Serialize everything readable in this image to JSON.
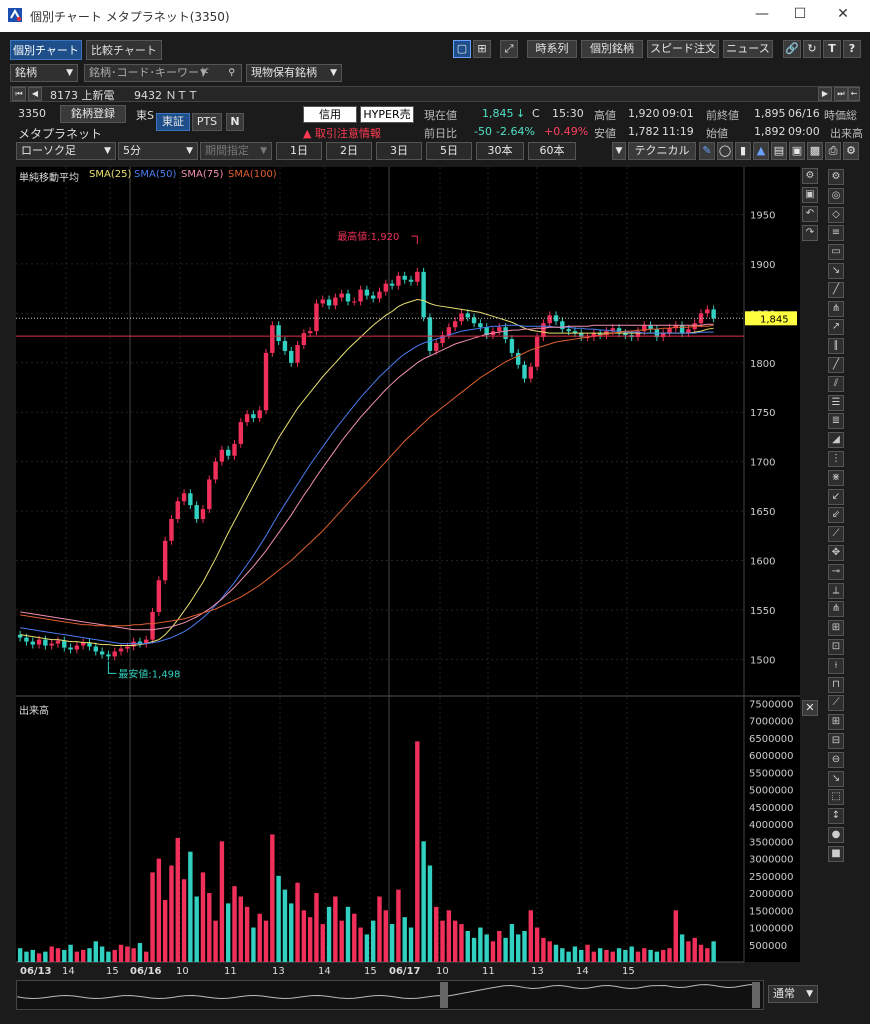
{
  "window": {
    "title": "個別チャート メタプラネット(3350)"
  },
  "tabs": [
    {
      "label": "個別チャート"
    },
    {
      "label": "比較チャート"
    }
  ],
  "topbar": {
    "time_series": "時系列",
    "individual": "個別銘柄",
    "speed_order": "スピード注文",
    "news": "ニュース"
  },
  "search": {
    "type_label": "銘柄",
    "placeholder": "銘柄･コード･キーワード",
    "holdings": "現物保有銘柄"
  },
  "history": {
    "item1": "8173 上新電",
    "item2": "9432 ＮＴＴ"
  },
  "stock": {
    "code": "3350",
    "name": "メタプラネット",
    "register": "銘柄登録",
    "market_short": "東S",
    "exchange": "東証",
    "pts": "PTS",
    "credit": "信用",
    "hyper": "HYPER売",
    "warning": "取引注意情報",
    "current_label": "現在値",
    "current": "1,845",
    "current_arrow": "↓",
    "current_flag": "C",
    "current_time": "15:30",
    "high_label": "高値",
    "high": "1,920",
    "high_time": "09:01",
    "prev_close_label": "前終値",
    "prev_close": "1,895",
    "prev_close_date": "06/16",
    "mid_label": "時価総",
    "change_label": "前日比",
    "change": "-50",
    "change_pct": "-2.64%",
    "change_pts": "+0.49%",
    "low_label": "安値",
    "low": "1,782",
    "low_time": "11:19",
    "open_label": "始値",
    "open": "1,892",
    "open_time": "09:00",
    "late_label": "出来高"
  },
  "chart_controls": {
    "chart_type": "ローソク足",
    "interval": "5分",
    "period": "期間指定",
    "ranges": [
      "1日",
      "2日",
      "3日",
      "5日",
      "30本",
      "60本"
    ],
    "technical": "テクニカル"
  },
  "legend": {
    "title": "単純移動平均",
    "sma25": "SMA(25)",
    "sma50": "SMA(50)",
    "sma75": "SMA(75)",
    "sma100": "SMA(100)",
    "volume_label": "出来高"
  },
  "colors": {
    "up": "#f0305a",
    "down": "#32d0c0",
    "sma25": "#e8e070",
    "sma50": "#4a7cf0",
    "sma75": "#f090b0",
    "sma100": "#e06030",
    "price_line": "#e0304a",
    "current_tag": "#ffff40"
  },
  "annotations": {
    "high": "最高値:1,920",
    "low": "最安値:1,498",
    "current_tag": "1,845"
  },
  "xaxis": {
    "labels": [
      "06/13",
      "14",
      "15",
      "06/16",
      "10",
      "11",
      "13",
      "14",
      "15",
      "06/17",
      "10",
      "11",
      "13",
      "14",
      "15"
    ]
  },
  "bottom": {
    "mode": "通常"
  },
  "chart_data": {
    "type": "candlestick",
    "price_axis": {
      "ticks": [
        1950,
        1900,
        1850,
        1800,
        1750,
        1700,
        1650,
        1600,
        1550,
        1500
      ],
      "range": [
        1465,
        1995
      ]
    },
    "volume_axis": {
      "ticks": [
        7500000,
        7000000,
        6500000,
        6000000,
        5500000,
        5000000,
        4500000,
        4000000,
        3500000,
        3000000,
        2500000,
        2000000,
        1500000,
        1000000,
        500000
      ],
      "range": [
        0,
        7600000
      ]
    },
    "close": [
      1522,
      1518,
      1515,
      1520,
      1514,
      1516,
      1519,
      1512,
      1510,
      1514,
      1517,
      1513,
      1508,
      1505,
      1503,
      1508,
      1511,
      1513,
      1518,
      1516,
      1520,
      1548,
      1580,
      1620,
      1642,
      1660,
      1668,
      1656,
      1642,
      1652,
      1682,
      1700,
      1712,
      1706,
      1718,
      1740,
      1748,
      1744,
      1752,
      1810,
      1838,
      1822,
      1812,
      1800,
      1818,
      1830,
      1832,
      1860,
      1864,
      1858,
      1866,
      1870,
      1862,
      1862,
      1874,
      1868,
      1865,
      1872,
      1880,
      1878,
      1888,
      1884,
      1882,
      1892,
      1846,
      1812,
      1820,
      1828,
      1836,
      1842,
      1850,
      1846,
      1840,
      1836,
      1828,
      1832,
      1836,
      1824,
      1810,
      1798,
      1784,
      1796,
      1826,
      1840,
      1848,
      1842,
      1834,
      1832,
      1830,
      1826,
      1826,
      1830,
      1828,
      1832,
      1835,
      1830,
      1828,
      1826,
      1832,
      1838,
      1834,
      1826,
      1830,
      1835,
      1838,
      1830,
      1834,
      1840,
      1850,
      1854,
      1845
    ],
    "sma25": [
      1525,
      1524,
      1523,
      1522,
      1521,
      1520,
      1520,
      1519,
      1518,
      1518,
      1517,
      1517,
      1516,
      1515,
      1515,
      1514,
      1514,
      1514,
      1514,
      1515,
      1516,
      1518,
      1520,
      1525,
      1532,
      1540,
      1549,
      1558,
      1568,
      1578,
      1590,
      1602,
      1615,
      1628,
      1640,
      1652,
      1664,
      1676,
      1688,
      1700,
      1712,
      1724,
      1734,
      1744,
      1754,
      1762,
      1770,
      1778,
      1786,
      1793,
      1800,
      1807,
      1814,
      1820,
      1826,
      1832,
      1838,
      1843,
      1848,
      1852,
      1857,
      1860,
      1862,
      1864,
      1863,
      1860,
      1858,
      1857,
      1856,
      1855,
      1854,
      1853,
      1852,
      1851,
      1849,
      1847,
      1845,
      1843,
      1841,
      1838,
      1835,
      1833,
      1832,
      1831,
      1830,
      1830,
      1830,
      1830,
      1830,
      1830,
      1830,
      1830,
      1830,
      1830,
      1830,
      1830,
      1830,
      1830,
      1830,
      1830,
      1830,
      1830,
      1830,
      1830,
      1830,
      1830,
      1830,
      1831,
      1832,
      1834,
      1835
    ],
    "sma50": [
      1532,
      1531,
      1530,
      1529,
      1528,
      1527,
      1526,
      1525,
      1524,
      1523,
      1522,
      1521,
      1520,
      1519,
      1518,
      1517,
      1516,
      1516,
      1516,
      1516,
      1516,
      1517,
      1518,
      1520,
      1522,
      1525,
      1528,
      1532,
      1537,
      1542,
      1548,
      1555,
      1562,
      1570,
      1578,
      1587,
      1596,
      1605,
      1615,
      1625,
      1636,
      1647,
      1657,
      1667,
      1677,
      1687,
      1697,
      1706,
      1715,
      1724,
      1733,
      1741,
      1749,
      1757,
      1765,
      1772,
      1779,
      1786,
      1792,
      1798,
      1804,
      1809,
      1813,
      1817,
      1820,
      1822,
      1824,
      1826,
      1828,
      1830,
      1832,
      1833,
      1834,
      1835,
      1836,
      1837,
      1837,
      1838,
      1838,
      1838,
      1837,
      1837,
      1837,
      1837,
      1837,
      1836,
      1836,
      1836,
      1835,
      1835,
      1834,
      1834,
      1833,
      1833,
      1832,
      1832,
      1831,
      1831,
      1831,
      1830,
      1830,
      1830,
      1830,
      1830,
      1830,
      1830,
      1830,
      1830,
      1831,
      1831,
      1831
    ],
    "sma75": [
      1548,
      1547,
      1546,
      1545,
      1544,
      1543,
      1542,
      1541,
      1540,
      1539,
      1538,
      1537,
      1536,
      1535,
      1534,
      1533,
      1532,
      1531,
      1530,
      1530,
      1530,
      1530,
      1531,
      1532,
      1533,
      1535,
      1537,
      1540,
      1543,
      1547,
      1551,
      1556,
      1561,
      1567,
      1573,
      1580,
      1587,
      1594,
      1602,
      1610,
      1619,
      1628,
      1637,
      1646,
      1656,
      1666,
      1675,
      1685,
      1694,
      1703,
      1712,
      1721,
      1729,
      1737,
      1745,
      1752,
      1759,
      1766,
      1773,
      1779,
      1785,
      1790,
      1795,
      1800,
      1804,
      1807,
      1810,
      1813,
      1816,
      1819,
      1821,
      1823,
      1825,
      1827,
      1829,
      1830,
      1831,
      1832,
      1833,
      1833,
      1834,
      1834,
      1835,
      1835,
      1836,
      1836,
      1836,
      1837,
      1837,
      1837,
      1837,
      1838,
      1838,
      1838,
      1838,
      1838,
      1838,
      1838,
      1838,
      1838,
      1838,
      1838,
      1838,
      1838,
      1838,
      1838,
      1838,
      1838,
      1838,
      1839,
      1839
    ],
    "sma100": [
      1545,
      1544,
      1543,
      1542,
      1541,
      1540,
      1539,
      1538,
      1537,
      1536,
      1535,
      1535,
      1534,
      1534,
      1534,
      1534,
      1534,
      1534,
      1535,
      1535,
      1536,
      1536,
      1537,
      1538,
      1539,
      1540,
      1541,
      1543,
      1545,
      1547,
      1549,
      1551,
      1554,
      1557,
      1560,
      1563,
      1567,
      1571,
      1575,
      1580,
      1585,
      1590,
      1595,
      1600,
      1606,
      1612,
      1618,
      1624,
      1630,
      1637,
      1644,
      1651,
      1658,
      1665,
      1672,
      1679,
      1686,
      1693,
      1700,
      1707,
      1714,
      1721,
      1727,
      1733,
      1739,
      1745,
      1750,
      1755,
      1760,
      1765,
      1770,
      1775,
      1780,
      1785,
      1789,
      1793,
      1797,
      1801,
      1804,
      1807,
      1810,
      1813,
      1815,
      1817,
      1819,
      1821,
      1822,
      1823,
      1824,
      1825,
      1826,
      1827,
      1828,
      1829,
      1830,
      1831,
      1832,
      1832,
      1833,
      1833,
      1834,
      1834,
      1835,
      1835,
      1836,
      1836,
      1836,
      1837,
      1837,
      1837,
      1838
    ],
    "volume": [
      400000,
      300000,
      350000,
      250000,
      300000,
      450000,
      400000,
      350000,
      500000,
      300000,
      350000,
      400000,
      600000,
      450000,
      300000,
      350000,
      500000,
      450000,
      400000,
      550000,
      300000,
      2600000,
      3000000,
      1800000,
      2800000,
      3600000,
      2400000,
      3200000,
      1900000,
      2600000,
      2000000,
      1200000,
      3500000,
      1700000,
      2200000,
      1900000,
      1600000,
      1000000,
      1400000,
      1200000,
      3700000,
      2500000,
      2100000,
      1700000,
      2300000,
      1500000,
      1300000,
      2000000,
      1100000,
      1600000,
      1900000,
      1200000,
      1600000,
      1400000,
      1000000,
      800000,
      1200000,
      1900000,
      1500000,
      1100000,
      2100000,
      1300000,
      1000000,
      6400000,
      3500000,
      2800000,
      1600000,
      1200000,
      1500000,
      1200000,
      1100000,
      900000,
      700000,
      1000000,
      800000,
      600000,
      900000,
      700000,
      1100000,
      800000,
      900000,
      1500000,
      1000000,
      700000,
      600000,
      500000,
      400000,
      300000,
      450000,
      350000,
      500000,
      300000,
      400000,
      350000,
      300000,
      400000,
      350000,
      450000,
      300000,
      400000,
      350000,
      300000,
      350000,
      400000,
      1500000,
      800000,
      600000,
      700000,
      500000,
      400000,
      600000
    ]
  }
}
